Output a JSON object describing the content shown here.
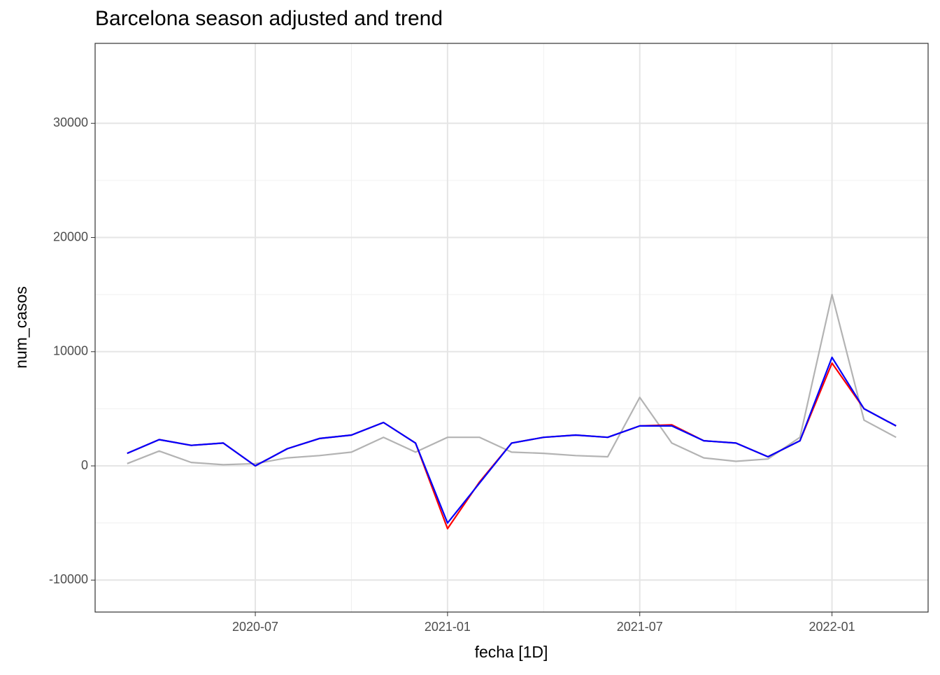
{
  "chart_data": {
    "type": "line",
    "title": "Barcelona season adjusted and trend",
    "x_label": "fecha [1D]",
    "y_label": "num_casos",
    "x": [
      "2020-03",
      "2020-04",
      "2020-05",
      "2020-06",
      "2020-07",
      "2020-08",
      "2020-09",
      "2020-10",
      "2020-11",
      "2020-12",
      "2021-01",
      "2021-02",
      "2021-03",
      "2021-04",
      "2021-05",
      "2021-06",
      "2021-07",
      "2021-08",
      "2021-09",
      "2021-10",
      "2021-11",
      "2021-12",
      "2022-01",
      "2022-02",
      "2022-03"
    ],
    "series": [
      {
        "name": "num_casos",
        "color": "#b3b3b3",
        "values": [
          200,
          1300,
          300,
          100,
          200,
          700,
          900,
          1200,
          2500,
          1200,
          2500,
          2500,
          1200,
          1100,
          900,
          800,
          6000,
          2000,
          700,
          400,
          600,
          2500,
          15000,
          4000,
          2500
        ]
      },
      {
        "name": "season_adjust",
        "color": "#ff0000",
        "values": [
          1100,
          2300,
          1800,
          2000,
          0,
          1500,
          2400,
          2700,
          3800,
          2000,
          -5500,
          -1400,
          2000,
          2500,
          2700,
          2500,
          3500,
          3600,
          2200,
          2000,
          800,
          2200,
          9000,
          5000,
          3500
        ]
      },
      {
        "name": "trend",
        "color": "#0000ff",
        "values": [
          1100,
          2300,
          1800,
          2000,
          0,
          1500,
          2400,
          2700,
          3800,
          2000,
          -5000,
          -1500,
          2000,
          2500,
          2700,
          2500,
          3500,
          3500,
          2200,
          2000,
          800,
          2200,
          9500,
          5000,
          3500
        ]
      }
    ],
    "xlim": [
      "2020-02",
      "2022-04"
    ],
    "xticks": [
      "2020-07",
      "2021-01",
      "2021-07",
      "2022-01"
    ],
    "ylim": [
      -12800,
      37000
    ],
    "yticks": [
      -10000,
      0,
      10000,
      20000,
      30000
    ],
    "grid": true
  }
}
